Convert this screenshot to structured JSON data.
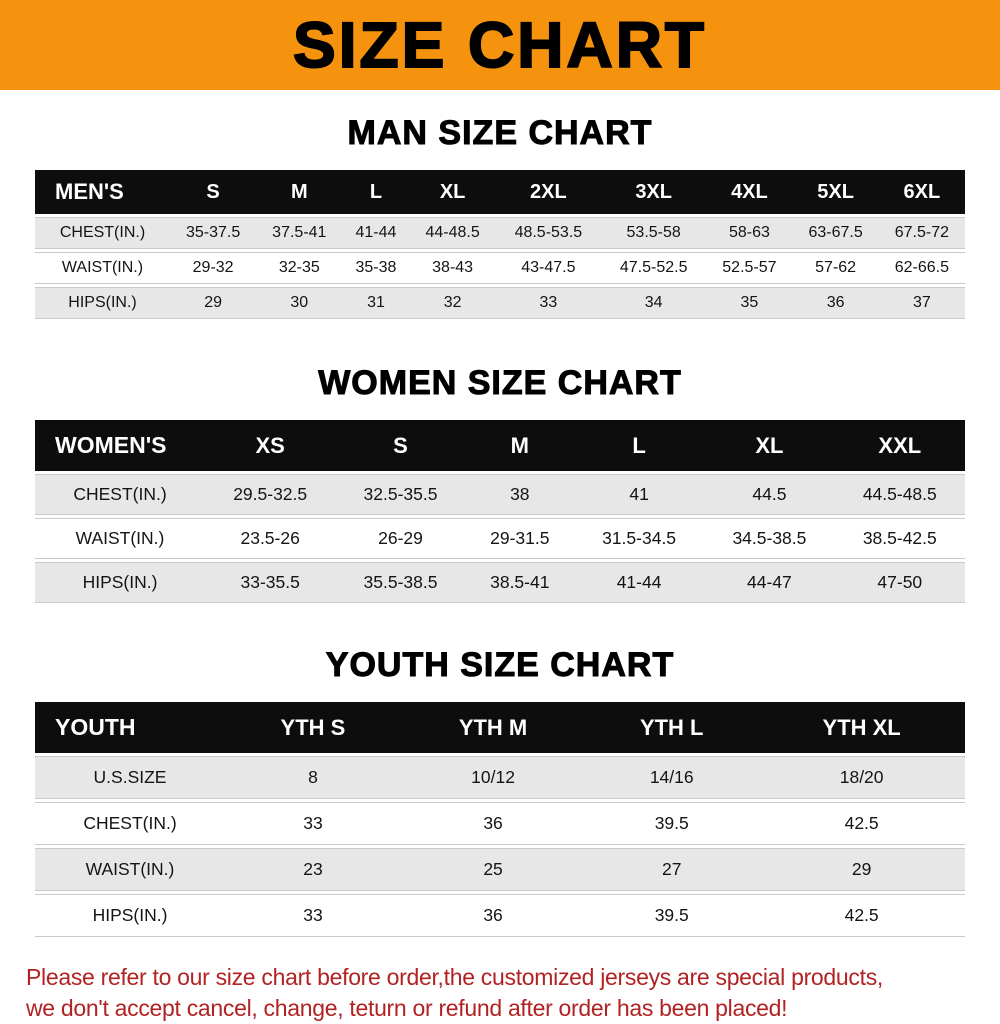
{
  "banner": {
    "title": "SIZE CHART"
  },
  "colors": {
    "banner_orange": "#F6930E",
    "header_bg": "#0D0D0D",
    "row_gray": "#E7E7E7",
    "disclaimer_red": "#B22222"
  },
  "sections": [
    {
      "heading": "MAN SIZE CHART",
      "table": {
        "header": [
          "MEN'S",
          "S",
          "M",
          "L",
          "XL",
          "2XL",
          "3XL",
          "4XL",
          "5XL",
          "6XL"
        ],
        "rows": [
          [
            "CHEST(IN.)",
            "35-37.5",
            "37.5-41",
            "41-44",
            "44-48.5",
            "48.5-53.5",
            "53.5-58",
            "58-63",
            "63-67.5",
            "67.5-72"
          ],
          [
            "WAIST(IN.)",
            "29-32",
            "32-35",
            "35-38",
            "38-43",
            "43-47.5",
            "47.5-52.5",
            "52.5-57",
            "57-62",
            "62-66.5"
          ],
          [
            "HIPS(IN.)",
            "29",
            "30",
            "31",
            "32",
            "33",
            "34",
            "35",
            "36",
            "37"
          ]
        ]
      }
    },
    {
      "heading": "WOMEN SIZE CHART",
      "table": {
        "header": [
          "WOMEN'S",
          "XS",
          "S",
          "M",
          "L",
          "XL",
          "XXL"
        ],
        "rows": [
          [
            "CHEST(IN.)",
            "29.5-32.5",
            "32.5-35.5",
            "38",
            "41",
            "44.5",
            "44.5-48.5"
          ],
          [
            "WAIST(IN.)",
            "23.5-26",
            "26-29",
            "29-31.5",
            "31.5-34.5",
            "34.5-38.5",
            "38.5-42.5"
          ],
          [
            "HIPS(IN.)",
            "33-35.5",
            "35.5-38.5",
            "38.5-41",
            "41-44",
            "44-47",
            "47-50"
          ]
        ]
      }
    },
    {
      "heading": "YOUTH SIZE CHART",
      "table": {
        "header": [
          "YOUTH",
          "YTH S",
          "YTH M",
          "YTH L",
          "YTH XL"
        ],
        "rows": [
          [
            "U.S.SIZE",
            "8",
            "10/12",
            "14/16",
            "18/20"
          ],
          [
            "CHEST(IN.)",
            "33",
            "36",
            "39.5",
            "42.5"
          ],
          [
            "WAIST(IN.)",
            "23",
            "25",
            "27",
            "29"
          ],
          [
            "HIPS(IN.)",
            "33",
            "36",
            "39.5",
            "42.5"
          ]
        ]
      }
    }
  ],
  "disclaimer": {
    "line1": "Please refer to our size chart before order,the customized jerseys are special products,",
    "line2": "we don't accept cancel, change, teturn or refund after order has been placed!"
  },
  "chart_data": [
    {
      "type": "table",
      "title": "MAN SIZE CHART",
      "columns": [
        "MEN'S",
        "S",
        "M",
        "L",
        "XL",
        "2XL",
        "3XL",
        "4XL",
        "5XL",
        "6XL"
      ],
      "rows": [
        [
          "CHEST(IN.)",
          "35-37.5",
          "37.5-41",
          "41-44",
          "44-48.5",
          "48.5-53.5",
          "53.5-58",
          "58-63",
          "63-67.5",
          "67.5-72"
        ],
        [
          "WAIST(IN.)",
          "29-32",
          "32-35",
          "35-38",
          "38-43",
          "43-47.5",
          "47.5-52.5",
          "52.5-57",
          "57-62",
          "62-66.5"
        ],
        [
          "HIPS(IN.)",
          "29",
          "30",
          "31",
          "32",
          "33",
          "34",
          "35",
          "36",
          "37"
        ]
      ]
    },
    {
      "type": "table",
      "title": "WOMEN SIZE CHART",
      "columns": [
        "WOMEN'S",
        "XS",
        "S",
        "M",
        "L",
        "XL",
        "XXL"
      ],
      "rows": [
        [
          "CHEST(IN.)",
          "29.5-32.5",
          "32.5-35.5",
          "38",
          "41",
          "44.5",
          "44.5-48.5"
        ],
        [
          "WAIST(IN.)",
          "23.5-26",
          "26-29",
          "29-31.5",
          "31.5-34.5",
          "34.5-38.5",
          "38.5-42.5"
        ],
        [
          "HIPS(IN.)",
          "33-35.5",
          "35.5-38.5",
          "38.5-41",
          "41-44",
          "44-47",
          "47-50"
        ]
      ]
    },
    {
      "type": "table",
      "title": "YOUTH SIZE CHART",
      "columns": [
        "YOUTH",
        "YTH S",
        "YTH M",
        "YTH L",
        "YTH XL"
      ],
      "rows": [
        [
          "U.S.SIZE",
          "8",
          "10/12",
          "14/16",
          "18/20"
        ],
        [
          "CHEST(IN.)",
          "33",
          "36",
          "39.5",
          "42.5"
        ],
        [
          "WAIST(IN.)",
          "23",
          "25",
          "27",
          "29"
        ],
        [
          "HIPS(IN.)",
          "33",
          "36",
          "39.5",
          "42.5"
        ]
      ]
    }
  ]
}
